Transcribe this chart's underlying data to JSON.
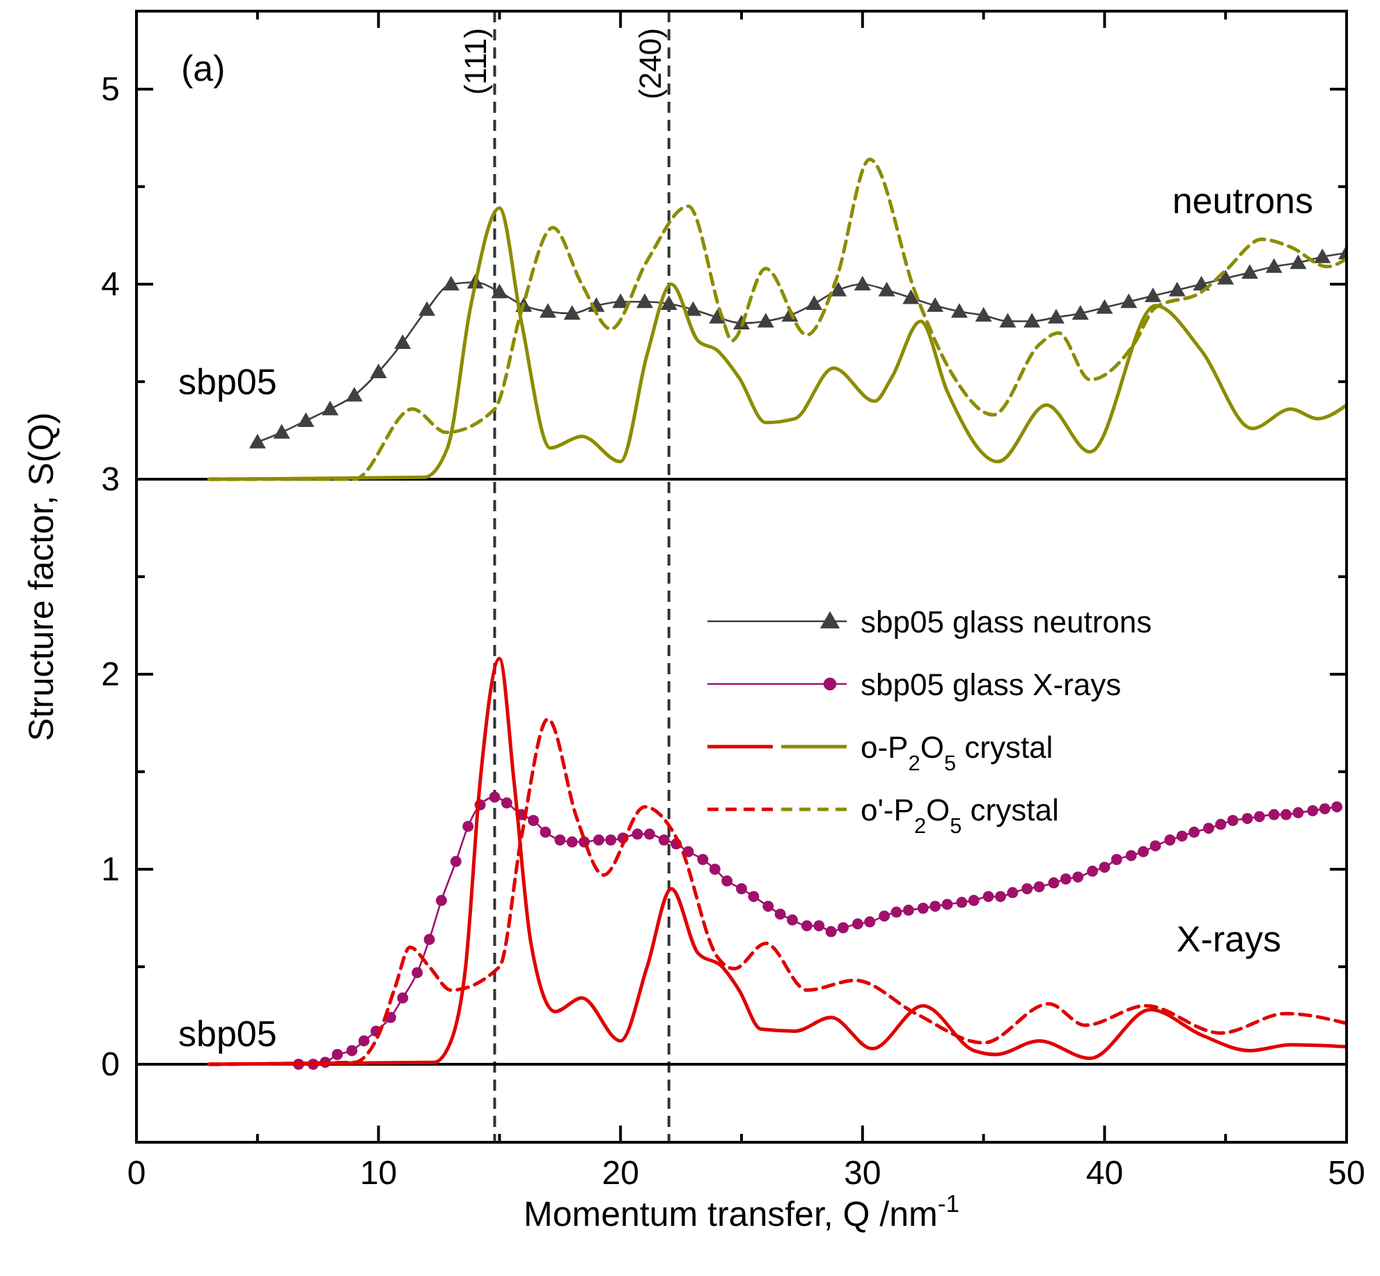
{
  "chart_data": {
    "type": "line",
    "xlabel": "Momentum transfer, Q /nm$^{-1}$",
    "ylabel": "Structure factor, S(Q)",
    "xlim": [
      0,
      50
    ],
    "ylim": [
      -0.4,
      5.4
    ],
    "xticks": [
      0,
      {
        "value": 5,
        "label": null
      },
      10,
      {
        "value": 15,
        "label": null
      },
      20,
      {
        "value": 25,
        "label": null
      },
      30,
      {
        "value": 35,
        "label": null
      },
      40,
      {
        "value": 45,
        "label": null
      },
      50
    ],
    "yticks": [
      0,
      {
        "value": 0.5,
        "label": null
      },
      1,
      {
        "value": 1.5,
        "label": null
      },
      2,
      {
        "value": 2.5,
        "label": null
      },
      3,
      {
        "value": 3.5,
        "label": null
      },
      4,
      {
        "value": 4.5,
        "label": null
      },
      5
    ],
    "legend": "right",
    "grid": false,
    "ref_lines": [
      {
        "axis": "x",
        "value": 14.8,
        "label": null,
        "color": "#333333",
        "line_style": "dashed"
      },
      {
        "axis": "x",
        "value": 22,
        "label": null,
        "color": "#333333",
        "line_style": "dashed"
      },
      {
        "axis": "y",
        "value": 0,
        "label": null,
        "color": "#000000",
        "line_style": "solid"
      },
      {
        "axis": "y",
        "value": 3,
        "label": null,
        "color": "#000000",
        "line_style": "solid"
      }
    ],
    "annotations": [
      "(a)",
      {
        "text": "(111)",
        "x": 14.8,
        "y": 5.4
      },
      {
        "text": "(240)",
        "x": 22,
        "y": 5.4
      },
      "neutrons",
      "X-rays",
      "sbp05",
      "sbp05"
    ],
    "series": [
      {
        "name": "sbp05 glass neutrons",
        "color": "#404040",
        "marker": "triangle",
        "line_style": "solid",
        "x": [
          5,
          6,
          7,
          8,
          9,
          10,
          11,
          12,
          13,
          14,
          15,
          16,
          17,
          18,
          19,
          20,
          21,
          22,
          23,
          24,
          25,
          26,
          27,
          28,
          29,
          30,
          31,
          32,
          33,
          34,
          35,
          36,
          37,
          38,
          39,
          40,
          41,
          42,
          43,
          44,
          45,
          46,
          47,
          48,
          49,
          50
        ],
        "values": [
          3.19,
          3.24,
          3.3,
          3.36,
          3.43,
          3.55,
          3.7,
          3.87,
          4.0,
          4.01,
          3.96,
          3.89,
          3.86,
          3.85,
          3.89,
          3.91,
          3.91,
          3.9,
          3.87,
          3.83,
          3.8,
          3.81,
          3.84,
          3.9,
          3.97,
          4.0,
          3.97,
          3.93,
          3.89,
          3.86,
          3.84,
          3.81,
          3.81,
          3.83,
          3.85,
          3.88,
          3.91,
          3.94,
          3.97,
          4.0,
          4.03,
          4.06,
          4.09,
          4.11,
          4.14,
          4.16
        ]
      },
      {
        "name": "sbp05 glass X-rays",
        "color": "#a0106a",
        "marker": "circle",
        "line_style": "solid",
        "x": [
          6.7,
          7.3,
          7.8,
          8.3,
          8.9,
          9.4,
          9.9,
          10.5,
          11.0,
          11.6,
          12.1,
          12.6,
          13.2,
          13.7,
          14.2,
          14.8,
          15.3,
          15.9,
          16.4,
          16.9,
          17.5,
          18.0,
          18.5,
          19.1,
          19.6,
          20.1,
          20.7,
          21.2,
          21.8,
          22.3,
          22.8,
          23.4,
          23.9,
          24.4,
          25.0,
          25.5,
          26.1,
          26.6,
          27.1,
          27.7,
          28.2,
          28.7,
          29.2,
          29.8,
          30.3,
          30.9,
          31.4,
          31.9,
          32.5,
          33.0,
          33.5,
          34.1,
          34.6,
          35.2,
          35.7,
          36.2,
          36.8,
          37.3,
          37.9,
          38.4,
          38.9,
          39.5,
          40.0,
          40.5,
          41.1,
          41.6,
          42.1,
          42.7,
          43.2,
          43.7,
          44.3,
          44.8,
          45.3,
          45.9,
          46.4,
          47.0,
          47.5,
          48.0,
          48.6,
          49.1,
          49.6
        ],
        "values": [
          0.0,
          0.0,
          0.01,
          0.05,
          0.07,
          0.12,
          0.17,
          0.24,
          0.34,
          0.47,
          0.64,
          0.84,
          1.04,
          1.22,
          1.33,
          1.37,
          1.34,
          1.28,
          1.25,
          1.19,
          1.15,
          1.14,
          1.14,
          1.15,
          1.15,
          1.16,
          1.18,
          1.18,
          1.15,
          1.13,
          1.09,
          1.05,
          1.0,
          0.94,
          0.9,
          0.86,
          0.81,
          0.77,
          0.74,
          0.71,
          0.71,
          0.68,
          0.7,
          0.72,
          0.73,
          0.76,
          0.78,
          0.79,
          0.8,
          0.81,
          0.82,
          0.83,
          0.84,
          0.86,
          0.86,
          0.88,
          0.9,
          0.91,
          0.93,
          0.95,
          0.96,
          0.99,
          1.01,
          1.05,
          1.07,
          1.09,
          1.12,
          1.15,
          1.17,
          1.19,
          1.21,
          1.23,
          1.25,
          1.26,
          1.27,
          1.28,
          1.28,
          1.29,
          1.3,
          1.31,
          1.32
        ]
      },
      {
        "name": "o-P$_{2}$O$_{5}$ crystal",
        "color": "#8c8c00",
        "marker": "none",
        "line_style": "solid",
        "x": [
          3,
          11.9,
          12.85,
          13.8,
          15.0,
          15.9,
          17.1,
          18.4,
          20.0,
          21.1,
          22.1,
          23.2,
          24.0,
          24.9,
          26.0,
          27.2,
          28.8,
          30.5,
          31.2,
          32.4,
          33.5,
          35.6,
          37.6,
          39.4,
          42.1,
          44.0,
          46.1,
          47.7,
          48.8,
          50
        ],
        "values": [
          3.0,
          3.01,
          3.16,
          3.88,
          4.39,
          3.81,
          3.16,
          3.22,
          3.09,
          3.64,
          4.0,
          3.71,
          3.66,
          3.52,
          3.29,
          3.31,
          3.57,
          3.4,
          3.52,
          3.81,
          3.45,
          3.09,
          3.38,
          3.14,
          3.89,
          3.66,
          3.26,
          3.36,
          3.31,
          3.38
        ]
      },
      {
        "color": "#e00000",
        "marker": "none",
        "line_style": "solid",
        "x": [
          3,
          12.3,
          13.0,
          13.6,
          14.2,
          15.0,
          15.6,
          16.3,
          17.3,
          18.4,
          20.0,
          21.1,
          22.1,
          23.2,
          24.2,
          24.9,
          25.8,
          27.2,
          28.7,
          30.4,
          32.5,
          34.6,
          35.5,
          37.3,
          39.4,
          41.9,
          44.0,
          46.0,
          47.7,
          50
        ],
        "values": [
          0.0,
          0.01,
          0.12,
          0.5,
          1.45,
          2.08,
          1.45,
          0.62,
          0.27,
          0.34,
          0.12,
          0.5,
          0.9,
          0.57,
          0.5,
          0.38,
          0.18,
          0.17,
          0.24,
          0.08,
          0.3,
          0.07,
          0.05,
          0.12,
          0.03,
          0.28,
          0.15,
          0.07,
          0.1,
          0.09
        ]
      },
      {
        "name": "o'-P$_{2}$O$_{5}$ crystal",
        "color": "#8c8c00",
        "marker": "none",
        "line_style": "dashed",
        "x": [
          3,
          9.0,
          11.4,
          12.8,
          14.8,
          15.9,
          17.2,
          18.4,
          19.6,
          21.1,
          22.8,
          24.2,
          24.6,
          26.0,
          27.7,
          28.9,
          30.3,
          32.2,
          33.7,
          35.4,
          37.3,
          38.1,
          39.4,
          41.2,
          42.1,
          44.0,
          45.0,
          46.5,
          47.7,
          49.2,
          50
        ],
        "values": [
          3.0,
          3.0,
          3.36,
          3.24,
          3.36,
          3.86,
          4.29,
          4.0,
          3.77,
          4.12,
          4.4,
          3.83,
          3.71,
          4.08,
          3.74,
          4.02,
          4.64,
          3.95,
          3.54,
          3.33,
          3.69,
          3.75,
          3.51,
          3.69,
          3.88,
          3.96,
          4.07,
          4.23,
          4.19,
          4.09,
          4.13
        ]
      },
      {
        "color": "#e00000",
        "marker": "none",
        "line_style": "dashed",
        "x": [
          3,
          9.0,
          10.0,
          10.7,
          11.3,
          12.1,
          13.0,
          15.0,
          15.9,
          17.0,
          18.2,
          19.3,
          21.0,
          22.4,
          24.0,
          24.7,
          26.0,
          27.7,
          29.7,
          32.2,
          35.0,
          37.7,
          39.2,
          41.7,
          44.8,
          47.5,
          50
        ],
        "values": [
          0.0,
          0.01,
          0.15,
          0.4,
          0.6,
          0.5,
          0.38,
          0.5,
          1.16,
          1.77,
          1.26,
          0.97,
          1.32,
          1.14,
          0.55,
          0.49,
          0.62,
          0.38,
          0.43,
          0.26,
          0.11,
          0.31,
          0.2,
          0.3,
          0.16,
          0.26,
          0.21
        ]
      }
    ]
  }
}
